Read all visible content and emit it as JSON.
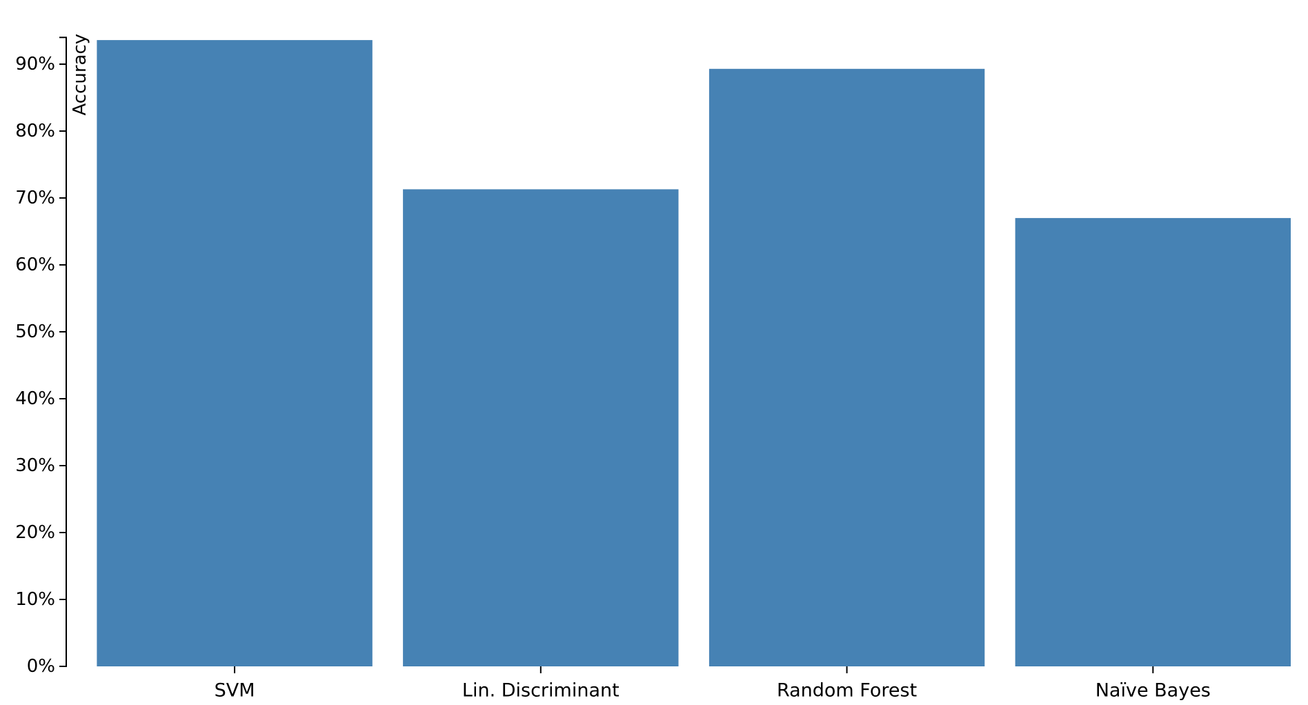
{
  "chart_data": {
    "type": "bar",
    "categories": [
      "SVM",
      "Lin. Discriminant",
      "Random Forest",
      "Naïve Bayes"
    ],
    "values": [
      93.6,
      71.3,
      89.3,
      67.0
    ],
    "ylabel": "Accuracy",
    "xlabel": "",
    "title": "",
    "ylim": [
      0,
      94
    ],
    "yticks": [
      0,
      10,
      20,
      30,
      40,
      50,
      60,
      70,
      80,
      90
    ],
    "ytick_labels": [
      "0%",
      "10%",
      "20%",
      "30%",
      "40%",
      "50%",
      "60%",
      "70%",
      "80%",
      "90%"
    ],
    "grid": false,
    "legend": "none",
    "bar_color": "#4682b4"
  }
}
